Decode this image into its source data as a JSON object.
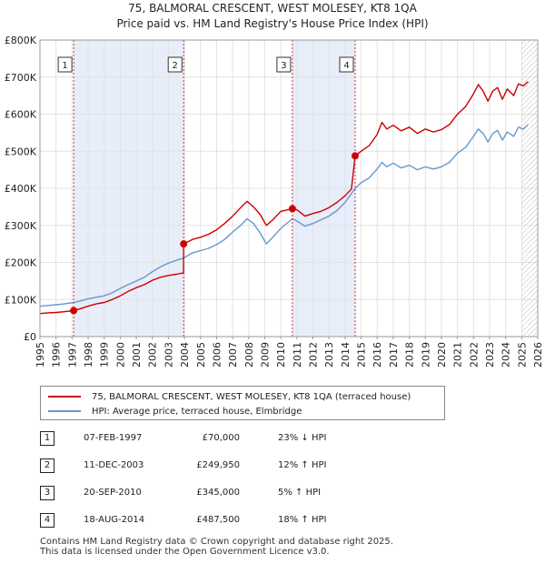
{
  "chart_data": {
    "type": "line",
    "title": "75, BALMORAL CRESCENT, WEST MOLESEY, KT8 1QA",
    "subtitle": "Price paid vs. HM Land Registry's House Price Index (HPI)",
    "x_range": [
      1995,
      2026
    ],
    "y_range": [
      0,
      800000
    ],
    "x_ticks": [
      "1995",
      "1996",
      "1997",
      "1998",
      "1999",
      "2000",
      "2001",
      "2002",
      "2003",
      "2004",
      "2005",
      "2006",
      "2007",
      "2008",
      "2009",
      "2010",
      "2011",
      "2012",
      "2013",
      "2014",
      "2015",
      "2016",
      "2017",
      "2018",
      "2019",
      "2020",
      "2021",
      "2022",
      "2023",
      "2024",
      "2025",
      "2026"
    ],
    "y_ticks": [
      {
        "value": 0,
        "label": "£0"
      },
      {
        "value": 100000,
        "label": "£100K"
      },
      {
        "value": 200000,
        "label": "£200K"
      },
      {
        "value": 300000,
        "label": "£300K"
      },
      {
        "value": 400000,
        "label": "£400K"
      },
      {
        "value": 500000,
        "label": "£500K"
      },
      {
        "value": 600000,
        "label": "£600K"
      },
      {
        "value": 700000,
        "label": "£700K"
      },
      {
        "value": 800000,
        "label": "£800K"
      }
    ],
    "shaded_bands": [
      [
        1997.1,
        2003.95
      ],
      [
        2010.72,
        2014.63
      ]
    ],
    "future_from": 2025.0,
    "series": [
      {
        "name": "75, BALMORAL CRESCENT, WEST MOLESEY, KT8 1QA (terraced house)",
        "color": "#cc0000",
        "points": [
          [
            1995.0,
            62000
          ],
          [
            1995.5,
            64000
          ],
          [
            1996.0,
            65000
          ],
          [
            1996.5,
            67000
          ],
          [
            1997.1,
            70000
          ],
          [
            1997.5,
            75000
          ],
          [
            1998.0,
            82000
          ],
          [
            1998.5,
            88000
          ],
          [
            1999.0,
            92000
          ],
          [
            1999.5,
            100000
          ],
          [
            2000.0,
            110000
          ],
          [
            2000.5,
            122000
          ],
          [
            2001.0,
            132000
          ],
          [
            2001.5,
            140000
          ],
          [
            2002.0,
            152000
          ],
          [
            2002.5,
            160000
          ],
          [
            2003.0,
            165000
          ],
          [
            2003.5,
            168000
          ],
          [
            2003.94,
            172000
          ],
          [
            2003.95,
            249950
          ],
          [
            2004.5,
            262000
          ],
          [
            2005.0,
            268000
          ],
          [
            2005.5,
            276000
          ],
          [
            2006.0,
            288000
          ],
          [
            2006.5,
            305000
          ],
          [
            2007.0,
            325000
          ],
          [
            2007.5,
            348000
          ],
          [
            2007.9,
            365000
          ],
          [
            2008.3,
            350000
          ],
          [
            2008.7,
            330000
          ],
          [
            2009.1,
            300000
          ],
          [
            2009.5,
            315000
          ],
          [
            2010.0,
            338000
          ],
          [
            2010.72,
            345000
          ],
          [
            2011.0,
            342000
          ],
          [
            2011.5,
            325000
          ],
          [
            2012.0,
            332000
          ],
          [
            2012.5,
            338000
          ],
          [
            2013.0,
            348000
          ],
          [
            2013.5,
            362000
          ],
          [
            2014.0,
            380000
          ],
          [
            2014.4,
            398000
          ],
          [
            2014.63,
            487500
          ],
          [
            2015.0,
            500000
          ],
          [
            2015.5,
            515000
          ],
          [
            2016.0,
            545000
          ],
          [
            2016.3,
            578000
          ],
          [
            2016.6,
            560000
          ],
          [
            2017.0,
            570000
          ],
          [
            2017.5,
            555000
          ],
          [
            2018.0,
            565000
          ],
          [
            2018.5,
            548000
          ],
          [
            2019.0,
            560000
          ],
          [
            2019.5,
            552000
          ],
          [
            2020.0,
            558000
          ],
          [
            2020.5,
            572000
          ],
          [
            2021.0,
            600000
          ],
          [
            2021.5,
            620000
          ],
          [
            2022.0,
            655000
          ],
          [
            2022.3,
            680000
          ],
          [
            2022.6,
            662000
          ],
          [
            2022.9,
            635000
          ],
          [
            2023.2,
            662000
          ],
          [
            2023.5,
            672000
          ],
          [
            2023.8,
            640000
          ],
          [
            2024.1,
            668000
          ],
          [
            2024.5,
            650000
          ],
          [
            2024.8,
            682000
          ],
          [
            2025.1,
            676000
          ],
          [
            2025.4,
            688000
          ]
        ]
      },
      {
        "name": "HPI: Average price, terraced house, Elmbridge",
        "color": "#6699cc",
        "points": [
          [
            1995.0,
            82000
          ],
          [
            1995.5,
            84000
          ],
          [
            1996.0,
            86000
          ],
          [
            1996.5,
            88000
          ],
          [
            1997.1,
            92000
          ],
          [
            1997.5,
            96000
          ],
          [
            1998.0,
            102000
          ],
          [
            1998.5,
            106000
          ],
          [
            1999.0,
            110000
          ],
          [
            1999.5,
            118000
          ],
          [
            2000.0,
            130000
          ],
          [
            2000.5,
            140000
          ],
          [
            2001.0,
            150000
          ],
          [
            2001.5,
            160000
          ],
          [
            2002.0,
            175000
          ],
          [
            2002.5,
            188000
          ],
          [
            2003.0,
            198000
          ],
          [
            2003.5,
            206000
          ],
          [
            2003.95,
            212000
          ],
          [
            2004.5,
            226000
          ],
          [
            2005.0,
            232000
          ],
          [
            2005.5,
            238000
          ],
          [
            2006.0,
            248000
          ],
          [
            2006.5,
            262000
          ],
          [
            2007.0,
            282000
          ],
          [
            2007.5,
            300000
          ],
          [
            2007.9,
            318000
          ],
          [
            2008.3,
            305000
          ],
          [
            2008.7,
            280000
          ],
          [
            2009.1,
            250000
          ],
          [
            2009.5,
            268000
          ],
          [
            2010.0,
            292000
          ],
          [
            2010.72,
            318000
          ],
          [
            2011.0,
            312000
          ],
          [
            2011.5,
            298000
          ],
          [
            2012.0,
            305000
          ],
          [
            2012.5,
            315000
          ],
          [
            2013.0,
            325000
          ],
          [
            2013.5,
            340000
          ],
          [
            2014.0,
            362000
          ],
          [
            2014.63,
            400000
          ],
          [
            2015.0,
            415000
          ],
          [
            2015.5,
            428000
          ],
          [
            2016.0,
            452000
          ],
          [
            2016.3,
            470000
          ],
          [
            2016.6,
            458000
          ],
          [
            2017.0,
            468000
          ],
          [
            2017.5,
            455000
          ],
          [
            2018.0,
            462000
          ],
          [
            2018.5,
            450000
          ],
          [
            2019.0,
            458000
          ],
          [
            2019.5,
            452000
          ],
          [
            2020.0,
            458000
          ],
          [
            2020.5,
            470000
          ],
          [
            2021.0,
            495000
          ],
          [
            2021.5,
            510000
          ],
          [
            2022.0,
            540000
          ],
          [
            2022.3,
            560000
          ],
          [
            2022.6,
            548000
          ],
          [
            2022.9,
            525000
          ],
          [
            2023.2,
            548000
          ],
          [
            2023.5,
            556000
          ],
          [
            2023.8,
            530000
          ],
          [
            2024.1,
            552000
          ],
          [
            2024.5,
            540000
          ],
          [
            2024.8,
            565000
          ],
          [
            2025.1,
            560000
          ],
          [
            2025.4,
            572000
          ]
        ]
      }
    ],
    "markers": [
      {
        "label": "1",
        "x": 1997.1,
        "y": 70000
      },
      {
        "label": "2",
        "x": 2003.95,
        "y": 249950
      },
      {
        "label": "3",
        "x": 2010.72,
        "y": 345000
      },
      {
        "label": "4",
        "x": 2014.63,
        "y": 487500
      }
    ]
  },
  "legend": {
    "property_label": "75, BALMORAL CRESCENT, WEST MOLESEY, KT8 1QA (terraced house)",
    "hpi_label": "HPI: Average price, terraced house, Elmbridge",
    "property_color": "#cc0000",
    "hpi_color": "#6699cc"
  },
  "transactions": [
    {
      "num": "1",
      "date": "07-FEB-1997",
      "price": "£70,000",
      "hpi": "23% ↓ HPI"
    },
    {
      "num": "2",
      "date": "11-DEC-2003",
      "price": "£249,950",
      "hpi": "12% ↑ HPI"
    },
    {
      "num": "3",
      "date": "20-SEP-2010",
      "price": "£345,000",
      "hpi": "5% ↑ HPI"
    },
    {
      "num": "4",
      "date": "18-AUG-2014",
      "price": "£487,500",
      "hpi": "18% ↑ HPI"
    }
  ],
  "footer": {
    "line1": "Contains HM Land Registry data © Crown copyright and database right 2025.",
    "line2": "This data is licensed under the Open Government Licence v3.0."
  }
}
